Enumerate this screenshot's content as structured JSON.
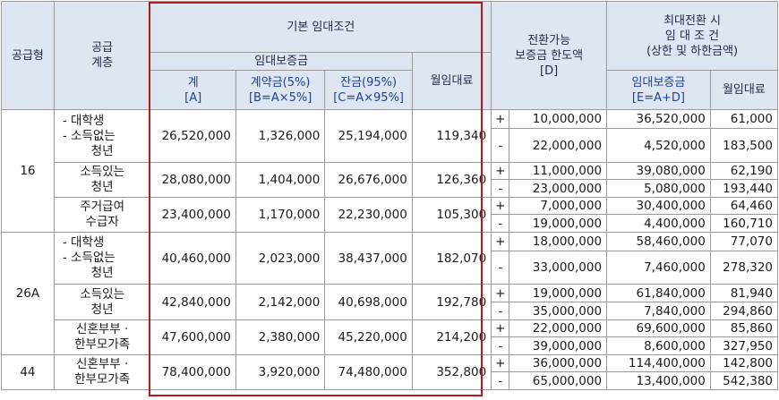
{
  "header": {
    "type": "공급형",
    "floor": "공급\n계층",
    "basic": "기본 임대조건",
    "deposit": "임대보증금",
    "total": "계\n[A]",
    "contract": "계약금(5%)\n[B=A×5%]",
    "balance": "잔금(95%)\n[C=A×95%]",
    "rent": "월임대료",
    "convert": "전환가능\n보증금 한도액\n[D]",
    "max": "최대전환 시\n임 대 조 건\n(상한 및 하한금액)",
    "max_deposit": "임대보증금\n[E=A+D]",
    "max_rent": "월임대료"
  },
  "groups": [
    {
      "type": "16",
      "rows": [
        {
          "floor_lines": [
            "- 대학생",
            "- 소득없는",
            "청년"
          ],
          "total": "26,520,000",
          "contract": "1,326,000",
          "balance": "25,194,000",
          "rent": "119,340",
          "plus": {
            "sign": "+",
            "convert": "10,000,000",
            "deposit": "36,520,000",
            "rent": "61,000"
          },
          "minus": {
            "sign": "-",
            "convert": "22,000,000",
            "deposit": "4,520,000",
            "rent": "183,500"
          }
        },
        {
          "floor_lines": [
            "소득있는",
            "청년"
          ],
          "total": "28,080,000",
          "contract": "1,404,000",
          "balance": "26,676,000",
          "rent": "126,360",
          "plus": {
            "sign": "+",
            "convert": "11,000,000",
            "deposit": "39,080,000",
            "rent": "62,190"
          },
          "minus": {
            "sign": "-",
            "convert": "23,000,000",
            "deposit": "5,080,000",
            "rent": "193,440"
          }
        },
        {
          "floor_lines": [
            "주거급여",
            "수급자"
          ],
          "total": "23,400,000",
          "contract": "1,170,000",
          "balance": "22,230,000",
          "rent": "105,300",
          "plus": {
            "sign": "+",
            "convert": "7,000,000",
            "deposit": "30,400,000",
            "rent": "64,460"
          },
          "minus": {
            "sign": "-",
            "convert": "19,000,000",
            "deposit": "4,400,000",
            "rent": "160,710"
          }
        }
      ]
    },
    {
      "type": "26A",
      "rows": [
        {
          "floor_lines": [
            "- 대학생",
            "- 소득없는",
            "청년"
          ],
          "total": "40,460,000",
          "contract": "2,023,000",
          "balance": "38,437,000",
          "rent": "182,070",
          "plus": {
            "sign": "+",
            "convert": "18,000,000",
            "deposit": "58,460,000",
            "rent": "77,070"
          },
          "minus": {
            "sign": "-",
            "convert": "33,000,000",
            "deposit": "7,460,000",
            "rent": "278,320"
          }
        },
        {
          "floor_lines": [
            "소득있는",
            "청년"
          ],
          "total": "42,840,000",
          "contract": "2,142,000",
          "balance": "40,698,000",
          "rent": "192,780",
          "plus": {
            "sign": "+",
            "convert": "19,000,000",
            "deposit": "61,840,000",
            "rent": "81,940"
          },
          "minus": {
            "sign": "-",
            "convert": "35,000,000",
            "deposit": "7,840,000",
            "rent": "294,860"
          }
        },
        {
          "floor_lines": [
            "신혼부부 ·",
            "한부모가족"
          ],
          "total": "47,600,000",
          "contract": "2,380,000",
          "balance": "45,220,000",
          "rent": "214,200",
          "plus": {
            "sign": "+",
            "convert": "22,000,000",
            "deposit": "69,600,000",
            "rent": "85,860"
          },
          "minus": {
            "sign": "-",
            "convert": "39,000,000",
            "deposit": "8,600,000",
            "rent": "327,950"
          }
        }
      ]
    },
    {
      "type": "44",
      "rows": [
        {
          "floor_lines": [
            "신혼부부 ·",
            "한부모가족"
          ],
          "total": "78,400,000",
          "contract": "3,920,000",
          "balance": "74,480,000",
          "rent": "352,800",
          "plus": {
            "sign": "+",
            "convert": "36,000,000",
            "deposit": "114,400,000",
            "rent": "142,800"
          },
          "minus": {
            "sign": "-",
            "convert": "65,000,000",
            "deposit": "13,400,000",
            "rent": "542,380"
          }
        }
      ]
    }
  ],
  "colors": {
    "header_bg": "#dde6f1",
    "highlight_border": "#b01c1c",
    "grid": "#9a9a9a"
  }
}
